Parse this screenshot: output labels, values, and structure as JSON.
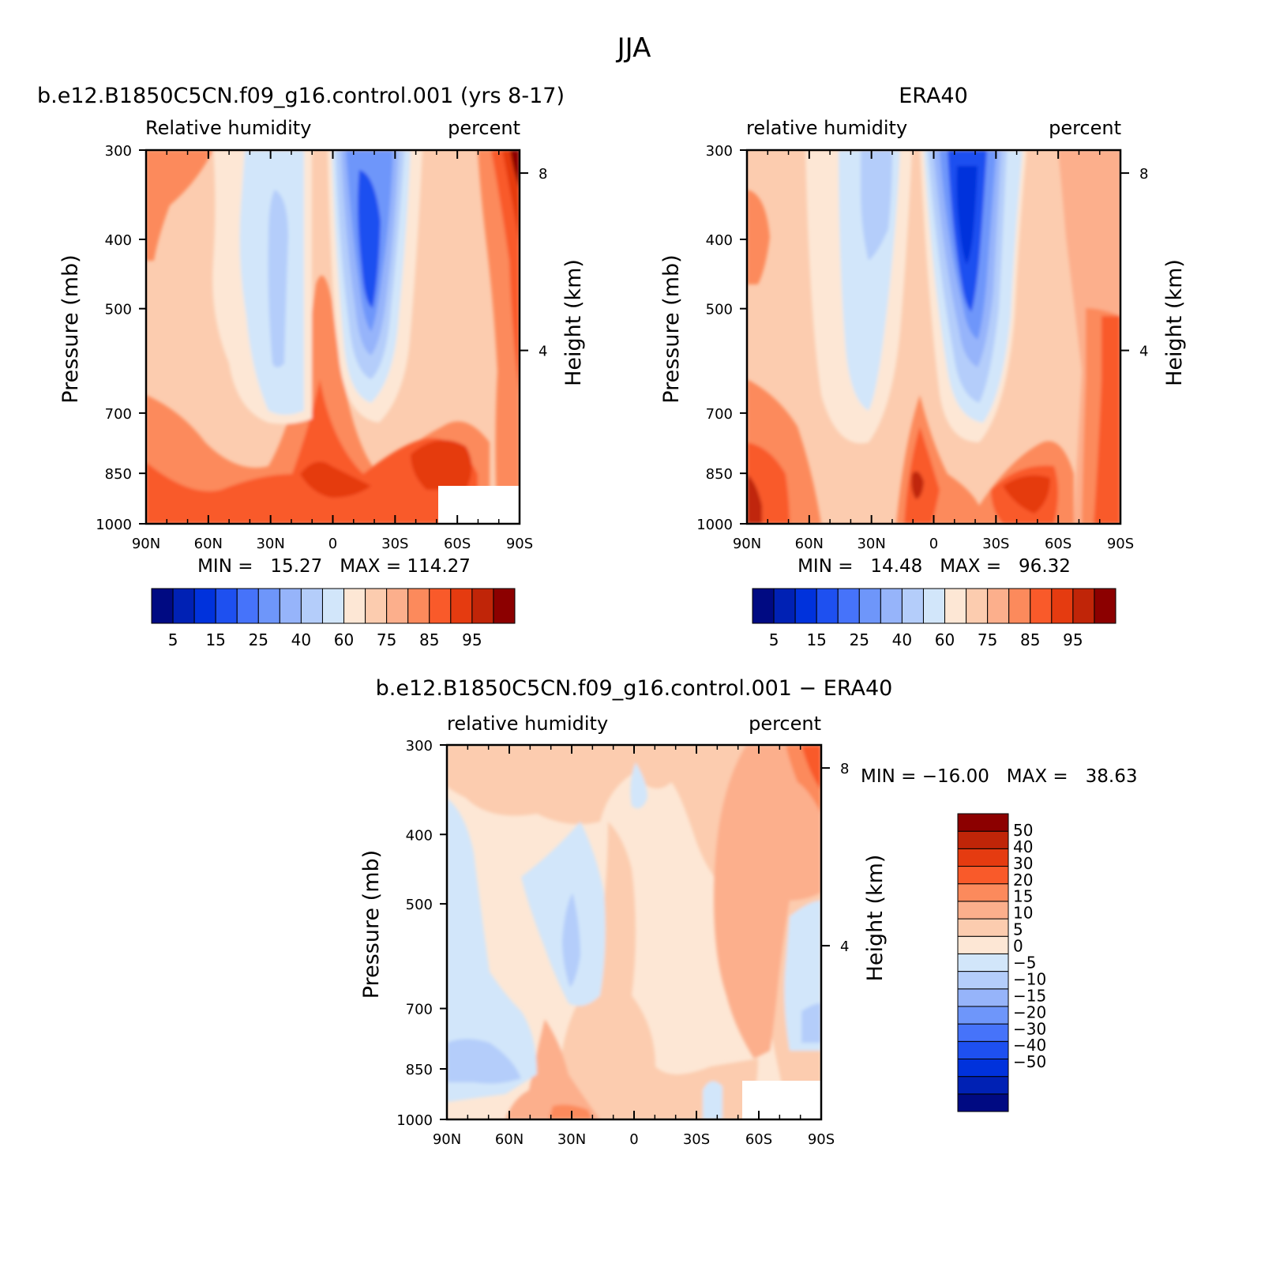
{
  "page_title": "JJA",
  "colors": {
    "neg": [
      "#d2e6fa",
      "#b4cdfa",
      "#96b4fa",
      "#6e96fa",
      "#4673fa",
      "#1e50f0",
      "#0032dc",
      "#0021b4",
      "#000a82"
    ],
    "pos": [
      "#fde7d5",
      "#fcccaf",
      "#fcaf8c",
      "#fc8a5c",
      "#f95a2a",
      "#e53b10",
      "#c02508",
      "#8c0000"
    ],
    "base_fill": "#fde7d5",
    "missing": "#ffffff"
  },
  "chart_data": [
    {
      "type": "heatmap",
      "id": "model",
      "title": "b.e12.B1850C5CN.f09_g16.control.001 (yrs 8-17)",
      "left_label": "Relative humidity",
      "right_label": "percent",
      "ylabel": "Pressure (mb)",
      "y2label": "Height (km)",
      "xticks": [
        "90N",
        "60N",
        "30N",
        "0",
        "30S",
        "60S",
        "90S"
      ],
      "yticks": [
        "300",
        "400",
        "500",
        "700",
        "850",
        "1000"
      ],
      "y2ticks": [
        "8",
        "4"
      ],
      "x_range": [
        90,
        -90
      ],
      "y_range": [
        300,
        1000
      ],
      "y_scale": "log",
      "min_max_text": "MIN =   15.27   MAX = 114.27",
      "min": 15.27,
      "max": 114.27,
      "legend_labels": [
        "5",
        "15",
        "25",
        "40",
        "60",
        "75",
        "85",
        "95"
      ],
      "levels": [
        5,
        10,
        15,
        20,
        25,
        30,
        40,
        50,
        60,
        70,
        75,
        80,
        85,
        90,
        95
      ],
      "field_sketch": [
        {
          "lat": 90,
          "p": 1000,
          "value": 95
        },
        {
          "lat": 75,
          "p": 950,
          "value": 85
        },
        {
          "lat": 80,
          "p": 420,
          "value": 75
        },
        {
          "lat": 70,
          "p": 350,
          "value": 75
        },
        {
          "lat": 55,
          "p": 880,
          "value": 65
        },
        {
          "lat": 45,
          "p": 550,
          "value": 55
        },
        {
          "lat": 32,
          "p": 500,
          "value": 45
        },
        {
          "lat": 28,
          "p": 460,
          "value": 35
        },
        {
          "lat": 15,
          "p": 600,
          "value": 62
        },
        {
          "lat": 5,
          "p": 900,
          "value": 90
        },
        {
          "lat": 5,
          "p": 650,
          "value": 75
        },
        {
          "lat": -15,
          "p": 450,
          "value": 15
        },
        {
          "lat": -18,
          "p": 350,
          "value": 20
        },
        {
          "lat": -15,
          "p": 700,
          "value": 40
        },
        {
          "lat": -30,
          "p": 800,
          "value": 62
        },
        {
          "lat": -52,
          "p": 880,
          "value": 90
        },
        {
          "lat": -75,
          "p": 600,
          "value": 80
        },
        {
          "lat": -88,
          "p": 320,
          "value": 100
        }
      ]
    },
    {
      "type": "heatmap",
      "id": "era40",
      "title": "ERA40",
      "left_label": "relative humidity",
      "right_label": "percent",
      "ylabel": "Pressure (mb)",
      "y2label": "Height (km)",
      "xticks": [
        "90N",
        "60N",
        "30N",
        "0",
        "30S",
        "60S",
        "90S"
      ],
      "yticks": [
        "300",
        "400",
        "500",
        "700",
        "850",
        "1000"
      ],
      "y2ticks": [
        "8",
        "4"
      ],
      "x_range": [
        90,
        -90
      ],
      "y_range": [
        300,
        1000
      ],
      "y_scale": "log",
      "min_max_text": "MIN =   14.48   MAX =   96.32",
      "min": 14.48,
      "max": 96.32,
      "legend_labels": [
        "5",
        "15",
        "25",
        "40",
        "60",
        "75",
        "85",
        "95"
      ],
      "levels": [
        5,
        10,
        15,
        20,
        25,
        30,
        40,
        50,
        60,
        70,
        75,
        80,
        85,
        90,
        95
      ],
      "field_sketch": [
        {
          "lat": 88,
          "p": 950,
          "value": 95
        },
        {
          "lat": 85,
          "p": 420,
          "value": 80
        },
        {
          "lat": 70,
          "p": 600,
          "value": 65
        },
        {
          "lat": 40,
          "p": 500,
          "value": 45
        },
        {
          "lat": 32,
          "p": 400,
          "value": 35
        },
        {
          "lat": 5,
          "p": 900,
          "value": 90
        },
        {
          "lat": -15,
          "p": 450,
          "value": 15
        },
        {
          "lat": -15,
          "p": 700,
          "value": 40
        },
        {
          "lat": -55,
          "p": 880,
          "value": 85
        },
        {
          "lat": -80,
          "p": 700,
          "value": 80
        },
        {
          "lat": -88,
          "p": 900,
          "value": 95
        }
      ]
    },
    {
      "type": "heatmap",
      "id": "difference",
      "title": "b.e12.B1850C5CN.f09_g16.control.001 − ERA40",
      "left_label": "relative humidity",
      "right_label": "percent",
      "ylabel": "Pressure (mb)",
      "y2label": "Height (km)",
      "xticks": [
        "90N",
        "60N",
        "30N",
        "0",
        "30S",
        "60S",
        "90S"
      ],
      "yticks": [
        "300",
        "400",
        "500",
        "700",
        "850",
        "1000"
      ],
      "y2ticks": [
        "8",
        "4"
      ],
      "x_range": [
        90,
        -90
      ],
      "y_range": [
        300,
        1000
      ],
      "y_scale": "log",
      "min_max_text": "MIN = −16.00   MAX =   38.63",
      "min": -16.0,
      "max": 38.63,
      "legend_labels": [
        "50",
        "40",
        "30",
        "20",
        "15",
        "10",
        "5",
        "0",
        "−5",
        "−10",
        "−15",
        "−20",
        "−30",
        "−40",
        "−50"
      ],
      "levels": [
        -50,
        -40,
        -30,
        -20,
        -15,
        -10,
        -5,
        0,
        5,
        10,
        15,
        20,
        30,
        40,
        50
      ],
      "field_sketch": [
        {
          "lat": 75,
          "p": 600,
          "value": -3
        },
        {
          "lat": 80,
          "p": 880,
          "value": -8
        },
        {
          "lat": 30,
          "p": 620,
          "value": -7
        },
        {
          "lat": 15,
          "p": 550,
          "value": 6
        },
        {
          "lat": -20,
          "p": 600,
          "value": 7
        },
        {
          "lat": -55,
          "p": 500,
          "value": 12
        },
        {
          "lat": -80,
          "p": 330,
          "value": 22
        },
        {
          "lat": 40,
          "p": 950,
          "value": 12
        },
        {
          "lat": -85,
          "p": 750,
          "value": -3
        }
      ]
    }
  ]
}
